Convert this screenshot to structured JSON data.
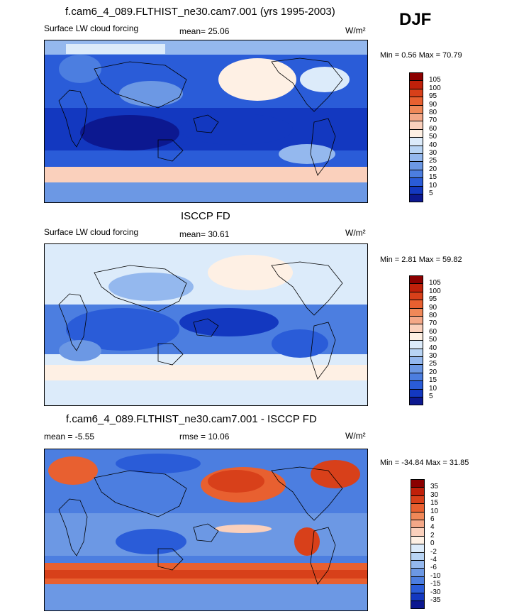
{
  "season": "DJF",
  "panels": [
    {
      "id": "model",
      "title": "f.cam6_4_089.FLTHIST_ne30.cam7.001 (yrs 1995-2003)",
      "left_label": "Surface LW cloud forcing",
      "mid_label": "mean=  25.06",
      "units": "W/m²",
      "minmax": "Min =   0.56 Max =  70.79",
      "field": {
        "stat_mean": 25.06,
        "stat_min": 0.56,
        "stat_max": 70.79
      },
      "colorbar": {
        "labels": [
          "105",
          "100",
          "95",
          "90",
          "80",
          "70",
          "60",
          "50",
          "40",
          "30",
          "25",
          "20",
          "15",
          "10",
          "5"
        ],
        "colors": [
          "#8b0000",
          "#c0200a",
          "#d8401a",
          "#e86030",
          "#f08858",
          "#f4a888",
          "#fad0bc",
          "#fef0e4",
          "#dcebfa",
          "#b8d4f4",
          "#94b8ee",
          "#6c98e4",
          "#4c7ee0",
          "#2a5cd8",
          "#1338c0",
          "#0c1890"
        ]
      }
    },
    {
      "id": "obs",
      "title": "ISCCP FD",
      "left_label": "Surface LW cloud forcing",
      "mid_label": "mean=  30.61",
      "units": "W/m²",
      "minmax": "Min =   2.81 Max =  59.82",
      "field": {
        "stat_mean": 30.61,
        "stat_min": 2.81,
        "stat_max": 59.82
      },
      "colorbar": {
        "labels": [
          "105",
          "100",
          "95",
          "90",
          "80",
          "70",
          "60",
          "50",
          "40",
          "30",
          "25",
          "20",
          "15",
          "10",
          "5"
        ],
        "colors": [
          "#8b0000",
          "#c0200a",
          "#d8401a",
          "#e86030",
          "#f08858",
          "#f4a888",
          "#fad0bc",
          "#fef0e4",
          "#dcebfa",
          "#b8d4f4",
          "#94b8ee",
          "#6c98e4",
          "#4c7ee0",
          "#2a5cd8",
          "#1338c0",
          "#0c1890"
        ]
      }
    },
    {
      "id": "diff",
      "title": "f.cam6_4_089.FLTHIST_ne30.cam7.001 - ISCCP FD",
      "left_label": "mean =  -5.55",
      "mid_label": "rmse =  10.06",
      "units": "W/m²",
      "minmax": "Min = -34.84 Max =  31.85",
      "field": {
        "stat_mean": -5.55,
        "stat_rmse": 10.06,
        "stat_min": -34.84,
        "stat_max": 31.85
      },
      "colorbar": {
        "labels": [
          "35",
          "30",
          "15",
          "10",
          "6",
          "4",
          "2",
          "0",
          "-2",
          "-4",
          "-6",
          "-10",
          "-15",
          "-30",
          "-35"
        ],
        "colors": [
          "#8b0000",
          "#c0200a",
          "#d8401a",
          "#e86030",
          "#f08858",
          "#f4a888",
          "#fad0bc",
          "#fef0e4",
          "#dcebfa",
          "#b8d4f4",
          "#94b8ee",
          "#6c98e4",
          "#4c7ee0",
          "#2a5cd8",
          "#1338c0",
          "#0c1890"
        ]
      }
    }
  ]
}
